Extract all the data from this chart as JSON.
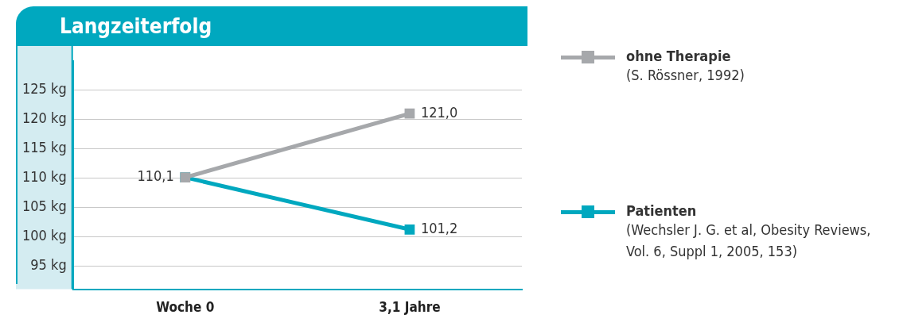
{
  "chart_data": {
    "type": "line",
    "title": "Langzeiterfolg",
    "categories": [
      "Woche 0",
      "3,1 Jahre"
    ],
    "series": [
      {
        "name": "ohne Therapie",
        "color": "#a6a8ab",
        "values": [
          110.1,
          121.0
        ],
        "value_labels": [
          null,
          "121,0"
        ]
      },
      {
        "name": "Patienten",
        "color": "#00a8bf",
        "values": [
          110.1,
          101.2
        ],
        "value_labels": [
          "110,1",
          "101,2"
        ]
      }
    ],
    "ylim": [
      91,
      130
    ],
    "yticks": [
      {
        "value": 95,
        "label": "95 kg"
      },
      {
        "value": 100,
        "label": "100 kg"
      },
      {
        "value": 105,
        "label": "105 kg"
      },
      {
        "value": 110,
        "label": "110 kg"
      },
      {
        "value": 115,
        "label": "115 kg"
      },
      {
        "value": 120,
        "label": "120 kg"
      },
      {
        "value": 125,
        "label": "125 kg"
      }
    ],
    "grid": "y",
    "legend": "right",
    "marker": "square",
    "line_style": "solid",
    "annotations": [
      "(S. Rössner, 1992)",
      "(Wechsler J. G. et al, Obesity Reviews, Vol. 6, Suppl 1, 2005, 153)"
    ]
  }
}
